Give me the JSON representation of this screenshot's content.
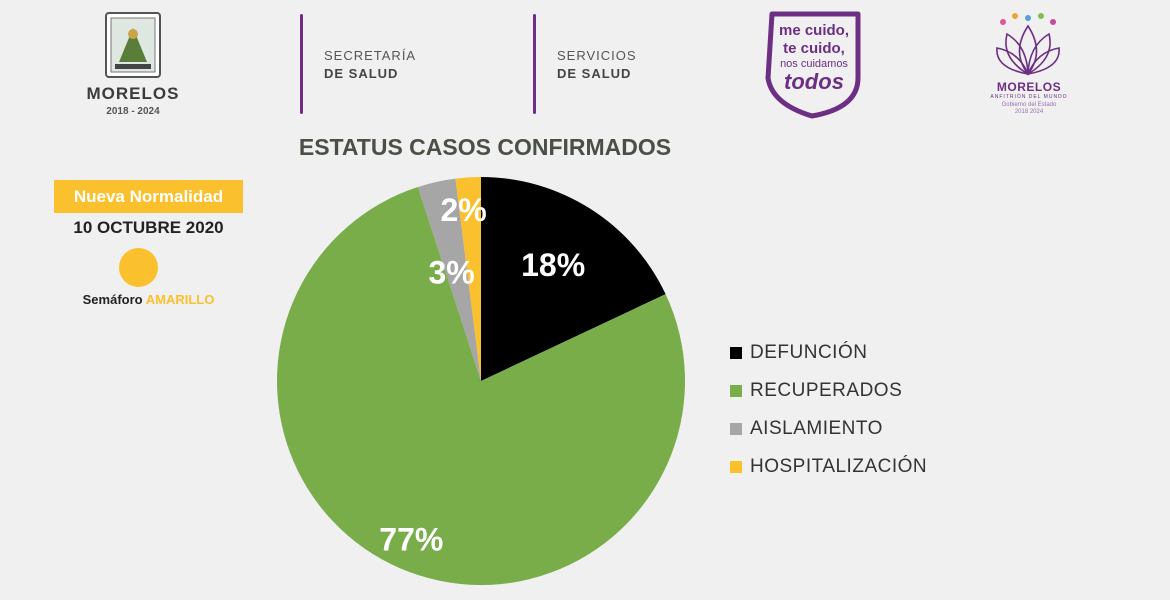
{
  "header": {
    "gov_title": "MORELOS",
    "gov_years": "2018 - 2024",
    "dept1": {
      "line1": "SECRETARÍA",
      "line2": "DE SALUD"
    },
    "dept2": {
      "line1": "SERVICIOS",
      "line2": "DE SALUD"
    },
    "campaign": {
      "line1": "me cuido,",
      "line2": "te cuido,",
      "line3": "nos cuidamos",
      "line4": "todos"
    },
    "lotus": {
      "title": "MORELOS",
      "subtitle": "ANFITRIÓN DEL MUNDO",
      "sub2_line1": "Gobierno del Estado",
      "sub2_line2": "2018 2024"
    }
  },
  "info": {
    "badge": "Nueva Normalidad",
    "date": "10 OCTUBRE 2020",
    "semaforo_label": "Semáforo",
    "semaforo_value": "AMARILLO",
    "semaforo_color": "#fbc02d"
  },
  "chart_data": {
    "type": "pie",
    "title": "ESTATUS CASOS CONFIRMADOS",
    "legend_position": "right",
    "categories": [
      "DEFUNCIÓN",
      "RECUPERADOS",
      "AISLAMIENTO",
      "HOSPITALIZACIÓN"
    ],
    "values": [
      18,
      77,
      3,
      2
    ],
    "labels": [
      "18%",
      "77%",
      "3%",
      "2%"
    ],
    "colors": [
      "#000000",
      "#78ad4a",
      "#a6a6a6",
      "#fbc02d"
    ]
  }
}
